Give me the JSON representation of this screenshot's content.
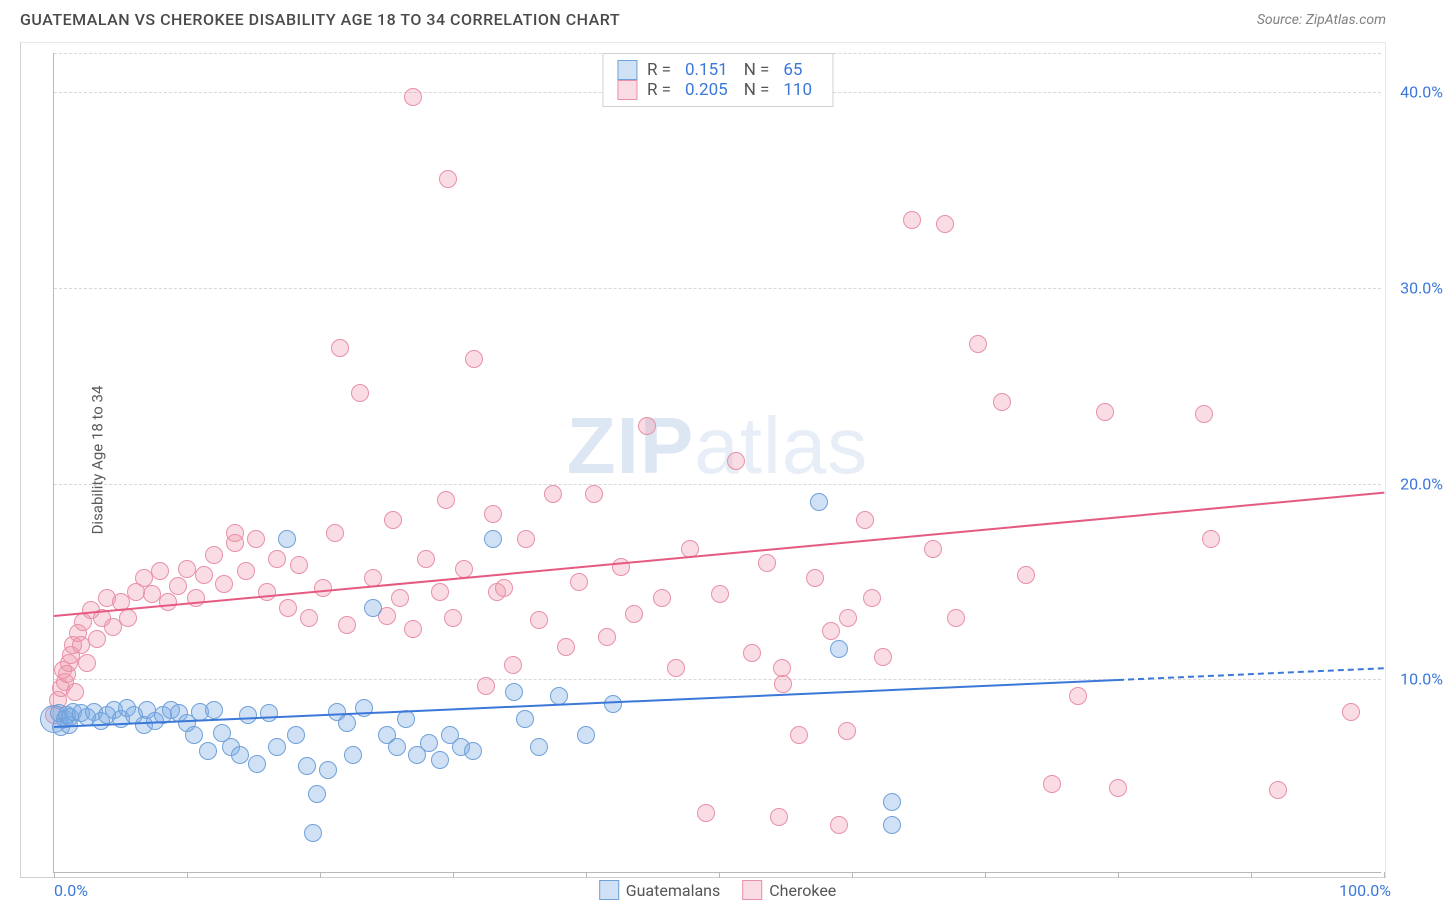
{
  "title": "GUATEMALAN VS CHEROKEE DISABILITY AGE 18 TO 34 CORRELATION CHART",
  "source": "Source: ZipAtlas.com",
  "watermark_bold": "ZIP",
  "watermark_light": "atlas",
  "chart": {
    "type": "scatter",
    "ylabel": "Disability Age 18 to 34",
    "xlim": [
      0,
      100
    ],
    "ylim": [
      0,
      42
    ],
    "xtick_positions": [
      0,
      10,
      20,
      30,
      40,
      50,
      60,
      70,
      80,
      90,
      100
    ],
    "xtick_labels_visible": {
      "0": "0.0%",
      "100": "100.0%"
    },
    "ytick_positions": [
      10,
      20,
      30,
      40,
      42
    ],
    "ytick_labels": {
      "10": "10.0%",
      "20": "20.0%",
      "30": "30.0%",
      "40": "40.0%"
    },
    "grid_color": "#d8d8d8",
    "background_color": "#ffffff",
    "axis_label_color": "#3b78d8",
    "axis_label_fontsize": 16,
    "ylabel_fontsize": 15,
    "marker_radius": 9,
    "marker_radius_large": 14,
    "series": {
      "guatemalans": {
        "label": "Guatemalans",
        "fill": "rgba(120,170,230,0.35)",
        "stroke": "#6fa0d8",
        "trend_color": "#3b78d8",
        "R": "0.151",
        "N": "65",
        "trend": {
          "x1": 0,
          "y1": 7.6,
          "x2": 80,
          "y2": 10.0,
          "dash_to_x": 100,
          "dash_to_y": 10.6
        },
        "points": [
          [
            0,
            7.8
          ],
          [
            0.4,
            8.1
          ],
          [
            0.5,
            7.4
          ],
          [
            0.8,
            7.8
          ],
          [
            1.0,
            8.0
          ],
          [
            1.1,
            7.5
          ],
          [
            1.2,
            7.9
          ],
          [
            1.4,
            8.2
          ],
          [
            2.0,
            8.1
          ],
          [
            2.5,
            7.9
          ],
          [
            3.0,
            8.2
          ],
          [
            3.5,
            7.7
          ],
          [
            4.0,
            8.0
          ],
          [
            4.5,
            8.3
          ],
          [
            5.0,
            7.8
          ],
          [
            5.5,
            8.4
          ],
          [
            6.0,
            8.0
          ],
          [
            6.8,
            7.5
          ],
          [
            7.0,
            8.3
          ],
          [
            7.6,
            7.7
          ],
          [
            8.2,
            8.0
          ],
          [
            8.8,
            8.3
          ],
          [
            9.4,
            8.1
          ],
          [
            10.0,
            7.6
          ],
          [
            10.5,
            7.0
          ],
          [
            11.0,
            8.2
          ],
          [
            11.6,
            6.2
          ],
          [
            12.0,
            8.3
          ],
          [
            12.6,
            7.1
          ],
          [
            13.3,
            6.4
          ],
          [
            14.0,
            6.0
          ],
          [
            14.6,
            8.0
          ],
          [
            15.3,
            5.5
          ],
          [
            16.2,
            8.1
          ],
          [
            16.8,
            6.4
          ],
          [
            17.5,
            17.0
          ],
          [
            18.2,
            7.0
          ],
          [
            19.0,
            5.4
          ],
          [
            19.8,
            4.0
          ],
          [
            20.6,
            5.2
          ],
          [
            19.5,
            2.0
          ],
          [
            21.3,
            8.2
          ],
          [
            22.0,
            7.6
          ],
          [
            22.5,
            6.0
          ],
          [
            23.3,
            8.4
          ],
          [
            24.0,
            13.5
          ],
          [
            25.0,
            7.0
          ],
          [
            25.8,
            6.4
          ],
          [
            26.5,
            7.8
          ],
          [
            27.3,
            6.0
          ],
          [
            28.2,
            6.6
          ],
          [
            29.0,
            5.7
          ],
          [
            29.8,
            7.0
          ],
          [
            30.6,
            6.4
          ],
          [
            31.5,
            6.2
          ],
          [
            33.0,
            17.0
          ],
          [
            34.6,
            9.2
          ],
          [
            35.4,
            7.8
          ],
          [
            36.5,
            6.4
          ],
          [
            38.0,
            9.0
          ],
          [
            40.0,
            7.0
          ],
          [
            42.0,
            8.6
          ],
          [
            57.5,
            18.9
          ],
          [
            63.0,
            3.6
          ],
          [
            59.0,
            11.4
          ],
          [
            63.0,
            2.4
          ]
        ]
      },
      "cherokee": {
        "label": "Cherokee",
        "fill": "rgba(240,150,170,0.32)",
        "stroke": "#e890a8",
        "trend_color": "#e65a82",
        "R": "0.205",
        "N": "110",
        "trend": {
          "x1": 0,
          "y1": 13.3,
          "x2": 100,
          "y2": 19.6
        },
        "points": [
          [
            0,
            8.0
          ],
          [
            0.3,
            8.8
          ],
          [
            0.5,
            9.4
          ],
          [
            0.7,
            10.3
          ],
          [
            0.8,
            9.7
          ],
          [
            1.0,
            10.1
          ],
          [
            1.1,
            10.7
          ],
          [
            1.3,
            11.1
          ],
          [
            1.4,
            11.6
          ],
          [
            1.6,
            9.2
          ],
          [
            1.8,
            12.2
          ],
          [
            2.0,
            11.6
          ],
          [
            2.2,
            12.8
          ],
          [
            2.5,
            10.7
          ],
          [
            2.8,
            13.4
          ],
          [
            3.2,
            11.9
          ],
          [
            3.6,
            13.0
          ],
          [
            4.0,
            14.0
          ],
          [
            4.4,
            12.5
          ],
          [
            5.0,
            13.8
          ],
          [
            5.6,
            13.0
          ],
          [
            6.2,
            14.3
          ],
          [
            6.8,
            15.0
          ],
          [
            7.4,
            14.2
          ],
          [
            8.0,
            15.4
          ],
          [
            8.6,
            13.8
          ],
          [
            9.3,
            14.6
          ],
          [
            10.0,
            15.5
          ],
          [
            10.7,
            14.0
          ],
          [
            11.3,
            15.2
          ],
          [
            12.0,
            16.2
          ],
          [
            12.8,
            14.7
          ],
          [
            13.6,
            16.8
          ],
          [
            13.6,
            17.3
          ],
          [
            14.4,
            15.4
          ],
          [
            15.2,
            17.0
          ],
          [
            16.0,
            14.3
          ],
          [
            16.8,
            16.0
          ],
          [
            17.6,
            13.5
          ],
          [
            18.4,
            15.7
          ],
          [
            19.2,
            13.0
          ],
          [
            20.2,
            14.5
          ],
          [
            21.1,
            17.3
          ],
          [
            21.5,
            26.8
          ],
          [
            22.0,
            12.6
          ],
          [
            23.0,
            24.5
          ],
          [
            24.0,
            15.0
          ],
          [
            25.0,
            13.1
          ],
          [
            25.5,
            18.0
          ],
          [
            26.0,
            14.0
          ],
          [
            27.0,
            39.6
          ],
          [
            27.0,
            12.4
          ],
          [
            28.0,
            16.0
          ],
          [
            29.0,
            14.3
          ],
          [
            29.5,
            19.0
          ],
          [
            30.0,
            13.0
          ],
          [
            29.6,
            35.4
          ],
          [
            30.8,
            15.5
          ],
          [
            31.6,
            26.2
          ],
          [
            32.5,
            9.5
          ],
          [
            33.0,
            18.3
          ],
          [
            33.3,
            14.3
          ],
          [
            33.8,
            14.5
          ],
          [
            34.5,
            10.6
          ],
          [
            35.5,
            17.0
          ],
          [
            36.5,
            12.9
          ],
          [
            37.5,
            19.3
          ],
          [
            38.5,
            11.5
          ],
          [
            39.5,
            14.8
          ],
          [
            40.6,
            19.3
          ],
          [
            41.6,
            12.0
          ],
          [
            42.6,
            15.6
          ],
          [
            43.6,
            13.2
          ],
          [
            44.6,
            22.8
          ],
          [
            45.7,
            14.0
          ],
          [
            46.8,
            10.4
          ],
          [
            47.8,
            16.5
          ],
          [
            49.0,
            3.0
          ],
          [
            50.1,
            14.2
          ],
          [
            51.3,
            21.0
          ],
          [
            52.5,
            11.2
          ],
          [
            53.6,
            15.8
          ],
          [
            54.5,
            2.8
          ],
          [
            54.8,
            9.6
          ],
          [
            56.0,
            7.0
          ],
          [
            57.2,
            15.0
          ],
          [
            58.4,
            12.3
          ],
          [
            59.7,
            13.0
          ],
          [
            80.0,
            4.3
          ],
          [
            54.7,
            10.4
          ],
          [
            59.0,
            2.4
          ],
          [
            59.6,
            7.2
          ],
          [
            61.0,
            18
          ],
          [
            61.5,
            14
          ],
          [
            62.3,
            11
          ],
          [
            64.5,
            33.3
          ],
          [
            66.1,
            16.5
          ],
          [
            67.0,
            33.1
          ],
          [
            67.8,
            13.0
          ],
          [
            69.5,
            27.0
          ],
          [
            71.3,
            24.0
          ],
          [
            73.1,
            15.2
          ],
          [
            75.0,
            4.5
          ],
          [
            77.0,
            9.0
          ],
          [
            79.0,
            23.5
          ],
          [
            86.5,
            23.4
          ],
          [
            87.0,
            17.0
          ],
          [
            92.0,
            4.2
          ],
          [
            97.5,
            8.2
          ]
        ]
      }
    }
  },
  "legend_stats": [
    {
      "series": "guatemalans"
    },
    {
      "series": "cherokee"
    }
  ]
}
